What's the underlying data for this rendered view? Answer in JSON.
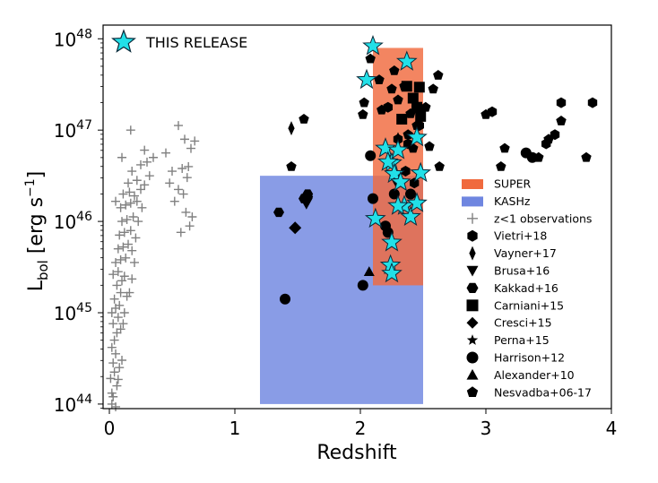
{
  "chart_data": {
    "type": "scatter",
    "xlabel": "Redshift",
    "ylabel": {
      "main": "L",
      "sub": "bol",
      "unit_open": " [erg s",
      "unit_sup": "−1",
      "unit_close": "]"
    },
    "xlim": [
      -0.05,
      4.0
    ],
    "ylim_log10": [
      43.95,
      48.15
    ],
    "y_scale": "log",
    "x_ticks": [
      {
        "value": 0,
        "label": "0"
      },
      {
        "value": 1,
        "label": "1"
      },
      {
        "value": 2,
        "label": "2"
      },
      {
        "value": 3,
        "label": "3"
      },
      {
        "value": 4,
        "label": "4"
      }
    ],
    "y_ticks": [
      {
        "exp": 44,
        "base": "10",
        "sup": "44"
      },
      {
        "exp": 45,
        "base": "10",
        "sup": "45"
      },
      {
        "exp": 46,
        "base": "10",
        "sup": "46"
      },
      {
        "exp": 47,
        "base": "10",
        "sup": "47"
      },
      {
        "exp": 48,
        "base": "10",
        "sup": "48"
      }
    ],
    "regions": [
      {
        "name": "KASHz",
        "x": [
          1.2,
          2.5
        ],
        "logy": [
          44.0,
          46.5
        ],
        "color": "#6f86e0"
      },
      {
        "name": "SUPER",
        "x": [
          2.1,
          2.5
        ],
        "logy": [
          45.3,
          47.9
        ],
        "color": "#f06a3e"
      }
    ],
    "legend": [
      {
        "label": "SUPER",
        "marker": "patch",
        "color": "#f06a3e"
      },
      {
        "label": "KASHz",
        "marker": "patch",
        "color": "#6f86e0"
      },
      {
        "label": "z<1 observations",
        "marker": "plus",
        "color": "#808080"
      },
      {
        "label": "Vietri+18",
        "marker": "hexagon",
        "color": "#000000"
      },
      {
        "label": "Vayner+17",
        "marker": "thin-diamond",
        "color": "#000000"
      },
      {
        "label": "Brusa+16",
        "marker": "triangle-down",
        "color": "#000000"
      },
      {
        "label": "Kakkad+16",
        "marker": "hexagon2",
        "color": "#000000"
      },
      {
        "label": "Carniani+15",
        "marker": "square",
        "color": "#000000"
      },
      {
        "label": "Cresci+15",
        "marker": "diamond",
        "color": "#000000"
      },
      {
        "label": "Perna+15",
        "marker": "star",
        "color": "#000000"
      },
      {
        "label": "Harrison+12",
        "marker": "circle",
        "color": "#000000"
      },
      {
        "label": "Alexander+10",
        "marker": "triangle-up",
        "color": "#000000"
      },
      {
        "label": "Nesvadba+06-17",
        "marker": "pentagon",
        "color": "#000000"
      }
    ],
    "top_legend": {
      "label": "THIS RELEASE",
      "marker": "star",
      "color": "#22e0e8"
    },
    "series": [
      {
        "name": "THIS RELEASE",
        "marker": "star",
        "color": "#22e0e8",
        "size": 11,
        "points": [
          [
            2.1,
            47.92
          ],
          [
            2.05,
            47.55
          ],
          [
            2.37,
            47.75
          ],
          [
            2.2,
            46.8
          ],
          [
            2.25,
            46.64
          ],
          [
            2.3,
            46.78
          ],
          [
            2.45,
            46.92
          ],
          [
            2.22,
            46.65
          ],
          [
            2.27,
            46.52
          ],
          [
            2.32,
            46.43
          ],
          [
            2.48,
            46.53
          ],
          [
            2.35,
            46.17
          ],
          [
            2.4,
            46.05
          ],
          [
            2.45,
            46.2
          ],
          [
            2.3,
            46.17
          ],
          [
            2.12,
            46.03
          ],
          [
            2.25,
            45.77
          ],
          [
            2.24,
            45.52
          ],
          [
            2.25,
            45.43
          ]
        ]
      },
      {
        "name": "z<1 observations",
        "marker": "plus",
        "color": "#808080",
        "size": 5,
        "points": [
          [
            0.02,
            44.0
          ],
          [
            0.03,
            44.08
          ],
          [
            0.05,
            43.97
          ],
          [
            0.02,
            44.12
          ],
          [
            0.06,
            44.2
          ],
          [
            0.01,
            44.28
          ],
          [
            0.04,
            44.35
          ],
          [
            0.07,
            44.27
          ],
          [
            0.03,
            44.45
          ],
          [
            0.05,
            44.55
          ],
          [
            0.02,
            44.62
          ],
          [
            0.08,
            44.4
          ],
          [
            0.1,
            44.48
          ],
          [
            0.04,
            44.7
          ],
          [
            0.06,
            44.78
          ],
          [
            0.09,
            44.82
          ],
          [
            0.03,
            44.88
          ],
          [
            0.07,
            44.95
          ],
          [
            0.11,
            44.88
          ],
          [
            0.02,
            45.0
          ],
          [
            0.05,
            45.05
          ],
          [
            0.08,
            45.08
          ],
          [
            0.12,
            45.0
          ],
          [
            0.04,
            45.15
          ],
          [
            0.09,
            45.22
          ],
          [
            0.14,
            45.18
          ],
          [
            0.06,
            45.3
          ],
          [
            0.1,
            45.35
          ],
          [
            0.16,
            45.22
          ],
          [
            0.03,
            45.42
          ],
          [
            0.07,
            45.45
          ],
          [
            0.12,
            45.4
          ],
          [
            0.18,
            45.37
          ],
          [
            0.05,
            45.55
          ],
          [
            0.09,
            45.58
          ],
          [
            0.13,
            45.6
          ],
          [
            0.2,
            45.55
          ],
          [
            0.07,
            45.7
          ],
          [
            0.11,
            45.72
          ],
          [
            0.15,
            45.75
          ],
          [
            0.18,
            45.68
          ],
          [
            0.08,
            45.85
          ],
          [
            0.12,
            45.88
          ],
          [
            0.17,
            45.9
          ],
          [
            0.21,
            45.82
          ],
          [
            0.1,
            46.0
          ],
          [
            0.14,
            46.02
          ],
          [
            0.19,
            46.05
          ],
          [
            0.23,
            46.0
          ],
          [
            0.09,
            46.15
          ],
          [
            0.13,
            46.18
          ],
          [
            0.17,
            46.2
          ],
          [
            0.22,
            46.22
          ],
          [
            0.26,
            46.15
          ],
          [
            0.11,
            46.3
          ],
          [
            0.16,
            46.32
          ],
          [
            0.2,
            46.28
          ],
          [
            0.25,
            46.35
          ],
          [
            0.15,
            46.42
          ],
          [
            0.22,
            46.45
          ],
          [
            0.28,
            46.4
          ],
          [
            0.05,
            46.22
          ],
          [
            0.18,
            46.55
          ],
          [
            0.32,
            46.5
          ],
          [
            0.25,
            46.62
          ],
          [
            0.3,
            46.65
          ],
          [
            0.28,
            46.78
          ],
          [
            0.35,
            46.7
          ],
          [
            0.17,
            47.0
          ],
          [
            0.1,
            46.7
          ],
          [
            0.55,
            47.05
          ],
          [
            0.45,
            46.75
          ],
          [
            0.6,
            46.9
          ],
          [
            0.65,
            46.8
          ],
          [
            0.68,
            46.88
          ],
          [
            0.58,
            46.58
          ],
          [
            0.62,
            46.48
          ],
          [
            0.55,
            46.35
          ],
          [
            0.63,
            46.6
          ],
          [
            0.66,
            46.05
          ],
          [
            0.57,
            45.88
          ],
          [
            0.48,
            46.42
          ],
          [
            0.52,
            46.22
          ],
          [
            0.61,
            46.1
          ],
          [
            0.64,
            45.95
          ],
          [
            0.59,
            46.3
          ],
          [
            0.5,
            46.55
          ]
        ]
      },
      {
        "name": "Nesvadba+06-17",
        "marker": "pentagon",
        "color": "#000000",
        "size": 6,
        "points": [
          [
            1.55,
            47.12
          ],
          [
            1.45,
            46.6
          ],
          [
            2.15,
            47.55
          ],
          [
            2.03,
            47.3
          ],
          [
            2.02,
            47.17
          ],
          [
            2.17,
            47.22
          ],
          [
            2.25,
            47.45
          ],
          [
            2.3,
            47.33
          ],
          [
            2.4,
            47.18
          ],
          [
            2.45,
            47.05
          ],
          [
            2.52,
            47.25
          ],
          [
            2.58,
            47.45
          ],
          [
            2.62,
            47.6
          ],
          [
            2.08,
            47.78
          ],
          [
            2.27,
            47.65
          ],
          [
            2.35,
            47.48
          ],
          [
            2.55,
            46.82
          ],
          [
            2.63,
            46.6
          ],
          [
            2.38,
            46.95
          ],
          [
            2.42,
            46.8
          ],
          [
            3.15,
            46.8
          ],
          [
            3.12,
            46.6
          ],
          [
            3.5,
            46.9
          ],
          [
            3.42,
            46.7
          ],
          [
            3.8,
            46.7
          ],
          [
            3.6,
            47.1
          ],
          [
            3.0,
            47.17
          ]
        ]
      },
      {
        "name": "Vietri+18",
        "marker": "hexagon",
        "color": "#000000",
        "size": 6,
        "points": [
          [
            2.3,
            46.9
          ],
          [
            2.38,
            46.85
          ],
          [
            2.47,
            47.05
          ],
          [
            2.22,
            47.25
          ],
          [
            3.6,
            47.3
          ],
          [
            3.85,
            47.3
          ],
          [
            3.05,
            47.2
          ],
          [
            3.48,
            46.85
          ],
          [
            3.55,
            46.95
          ],
          [
            2.36,
            46.55
          ],
          [
            2.43,
            46.42
          ]
        ]
      },
      {
        "name": "Kakkad+16",
        "marker": "hexagon2",
        "color": "#000000",
        "size": 6,
        "points": [
          [
            1.58,
            46.3
          ],
          [
            1.55,
            46.25
          ],
          [
            1.35,
            46.1
          ],
          [
            1.58,
            46.27
          ]
        ]
      },
      {
        "name": "Carniani+15",
        "marker": "square",
        "color": "#000000",
        "size": 6,
        "points": [
          [
            2.37,
            47.48
          ],
          [
            2.47,
            47.47
          ],
          [
            2.42,
            47.35
          ],
          [
            2.45,
            47.25
          ],
          [
            2.33,
            47.12
          ],
          [
            2.48,
            47.15
          ]
        ]
      },
      {
        "name": "Vayner+17",
        "marker": "thin-diamond",
        "color": "#000000",
        "size": 8,
        "points": [
          [
            1.45,
            47.02
          ],
          [
            2.3,
            46.9
          ]
        ]
      },
      {
        "name": "Brusa+16",
        "marker": "triangle-down",
        "color": "#000000",
        "size": 7,
        "points": [
          [
            1.57,
            46.2
          ],
          [
            2.28,
            46.45
          ]
        ]
      },
      {
        "name": "Cresci+15",
        "marker": "diamond",
        "color": "#000000",
        "size": 7,
        "points": [
          [
            1.48,
            45.93
          ]
        ]
      },
      {
        "name": "Harrison+12",
        "marker": "circle",
        "color": "#000000",
        "size": 6,
        "points": [
          [
            1.4,
            45.15
          ],
          [
            2.02,
            45.3
          ],
          [
            2.08,
            46.72
          ],
          [
            2.1,
            46.25
          ],
          [
            2.2,
            45.95
          ],
          [
            2.22,
            45.88
          ],
          [
            2.27,
            46.3
          ],
          [
            2.4,
            46.3
          ],
          [
            3.32,
            46.75
          ],
          [
            3.37,
            46.7
          ]
        ]
      },
      {
        "name": "Alexander+10",
        "marker": "triangle-up",
        "color": "#000000",
        "size": 6,
        "points": [
          [
            2.07,
            45.45
          ]
        ]
      },
      {
        "name": "Perna+15",
        "marker": "star",
        "color": "#000000",
        "size": 6,
        "points": []
      }
    ]
  }
}
